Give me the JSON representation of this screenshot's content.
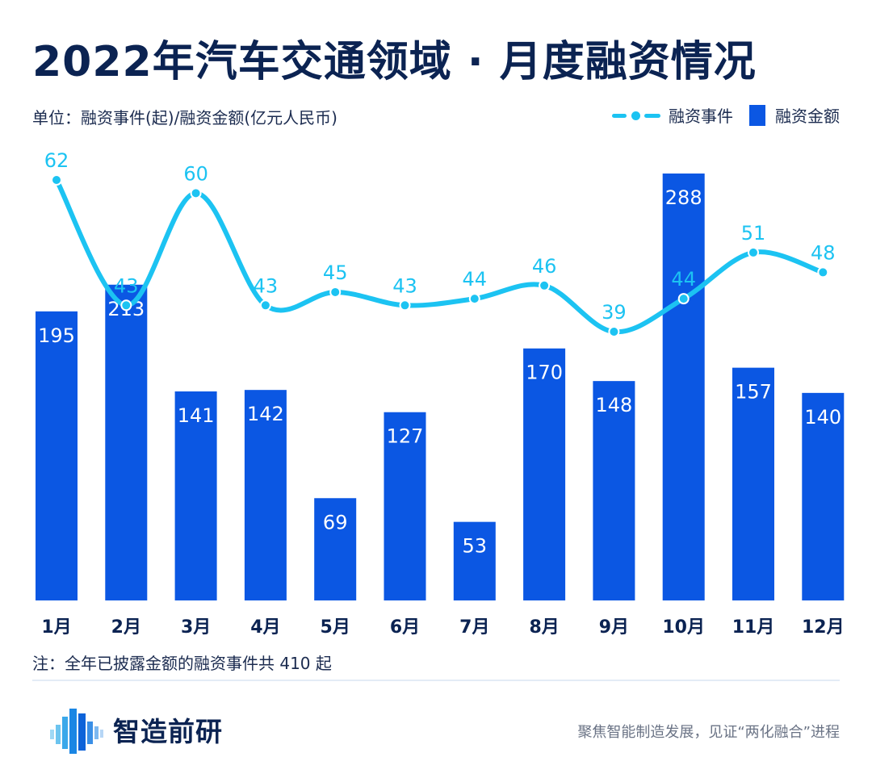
{
  "title": "2022年汽车交通领域 · 月度融资情况",
  "unit_label": "单位：融资事件(起)/融资金额(亿元人民币)",
  "legend": {
    "events_label": "融资事件",
    "amount_label": "融资金额"
  },
  "note": "注：全年已披露金额的融资事件共 410 起",
  "brand": {
    "name": "智造前研",
    "slogan": "聚焦智能制造发展，见证“两化融合”进程"
  },
  "colors": {
    "bar": "#0b57e3",
    "line": "#1cc3f2",
    "axis_text": "#0b2352",
    "bar_label": "#ffffff"
  },
  "chart_data": {
    "type": "bar",
    "categories": [
      "1月",
      "2月",
      "3月",
      "4月",
      "5月",
      "6月",
      "7月",
      "8月",
      "9月",
      "10月",
      "11月",
      "12月"
    ],
    "series": [
      {
        "name": "融资金额",
        "type": "bar",
        "axis": "amount",
        "values": [
          195,
          213,
          141,
          142,
          69,
          127,
          53,
          170,
          148,
          288,
          157,
          140
        ]
      },
      {
        "name": "融资事件",
        "type": "line",
        "axis": "events",
        "values": [
          62,
          43,
          60,
          43,
          45,
          43,
          44,
          46,
          39,
          44,
          51,
          48
        ]
      }
    ],
    "amount_range": [
      0,
      288
    ],
    "events_range": [
      39,
      62
    ],
    "xlabel": "",
    "ylabel": "",
    "grid": false,
    "legend_position": "top-right"
  }
}
